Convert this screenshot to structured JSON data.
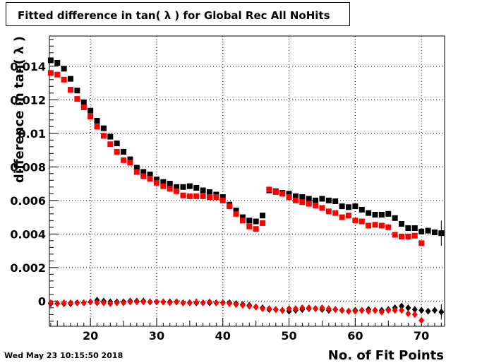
{
  "timestamp": "Wed May 23 10:15:50 2018",
  "chart_data": {
    "type": "scatter",
    "title": "Fitted difference in tan( λ ) for Global Rec All NoHits",
    "xlabel": "No. of Fit Points",
    "ylabel": "difference in tan( λ )",
    "xlim": [
      13.8,
      73.5
    ],
    "ylim": [
      -0.0015,
      0.0158
    ],
    "grid": true,
    "x_ticks": [
      20,
      30,
      40,
      50,
      60,
      70
    ],
    "x_tick_labels": [
      "20",
      "30",
      "40",
      "50",
      "60",
      "70"
    ],
    "y_ticks": [
      0,
      0.002,
      0.004,
      0.006,
      0.008,
      0.01,
      0.012,
      0.014
    ],
    "y_tick_labels": [
      "0",
      "0.002",
      "0.004",
      "0.006",
      "0.008",
      "0.01",
      "0.012",
      "0.014"
    ],
    "series": [
      {
        "color": "#000000",
        "marker": "square",
        "points": [
          [
            14,
            0.01435
          ],
          [
            15,
            0.0142
          ],
          [
            16,
            0.01385
          ],
          [
            17,
            0.01325
          ],
          [
            18,
            0.01255
          ],
          [
            19,
            0.01185
          ],
          [
            20,
            0.01135
          ],
          [
            21,
            0.01075
          ],
          [
            22,
            0.0103
          ],
          [
            23,
            0.0098
          ],
          [
            24,
            0.0094
          ],
          [
            25,
            0.0089
          ],
          [
            26,
            0.00845
          ],
          [
            27,
            0.00795
          ],
          [
            28,
            0.0077
          ],
          [
            29,
            0.00755
          ],
          [
            30,
            0.00725
          ],
          [
            31,
            0.0071
          ],
          [
            32,
            0.007
          ],
          [
            33,
            0.0068
          ],
          [
            34,
            0.0068
          ],
          [
            35,
            0.00685
          ],
          [
            36,
            0.00675
          ],
          [
            37,
            0.0066
          ],
          [
            38,
            0.0065
          ],
          [
            39,
            0.00635
          ],
          [
            40,
            0.0062
          ],
          [
            41,
            0.00575
          ],
          [
            42,
            0.0054
          ],
          [
            43,
            0.005
          ],
          [
            44,
            0.0048
          ],
          [
            45,
            0.00475
          ],
          [
            46,
            0.0051
          ],
          [
            47,
            0.0066
          ],
          [
            48,
            0.00655
          ],
          [
            49,
            0.00645
          ],
          [
            50,
            0.0064
          ],
          [
            51,
            0.00625
          ],
          [
            52,
            0.0062
          ],
          [
            53,
            0.0061
          ],
          [
            54,
            0.006
          ],
          [
            55,
            0.0061
          ],
          [
            56,
            0.006
          ],
          [
            57,
            0.00595
          ],
          [
            58,
            0.00565
          ],
          [
            59,
            0.0056
          ],
          [
            60,
            0.00565
          ],
          [
            61,
            0.00545
          ],
          [
            62,
            0.00525
          ],
          [
            63,
            0.00515
          ],
          [
            64,
            0.00515
          ],
          [
            65,
            0.0052
          ],
          [
            66,
            0.00495
          ],
          [
            67,
            0.0046
          ],
          [
            68,
            0.00435
          ],
          [
            69,
            0.00435
          ],
          [
            70,
            0.00415
          ],
          [
            71,
            0.0042
          ],
          [
            72,
            0.0041
          ],
          [
            73,
            0.00405
          ]
        ]
      },
      {
        "color": "#ff0000",
        "marker": "square",
        "points": [
          [
            14,
            0.0136
          ],
          [
            15,
            0.0135
          ],
          [
            16,
            0.0132
          ],
          [
            17,
            0.0126
          ],
          [
            18,
            0.01205
          ],
          [
            19,
            0.01155
          ],
          [
            20,
            0.011
          ],
          [
            21,
            0.0104
          ],
          [
            22,
            0.00985
          ],
          [
            23,
            0.00935
          ],
          [
            24,
            0.0089
          ],
          [
            25,
            0.0084
          ],
          [
            26,
            0.00825
          ],
          [
            27,
            0.0077
          ],
          [
            28,
            0.00745
          ],
          [
            29,
            0.0073
          ],
          [
            30,
            0.00705
          ],
          [
            31,
            0.00685
          ],
          [
            32,
            0.0067
          ],
          [
            33,
            0.00655
          ],
          [
            34,
            0.0063
          ],
          [
            35,
            0.00625
          ],
          [
            36,
            0.00625
          ],
          [
            37,
            0.00625
          ],
          [
            38,
            0.0062
          ],
          [
            39,
            0.0062
          ],
          [
            40,
            0.006
          ],
          [
            41,
            0.00565
          ],
          [
            42,
            0.0052
          ],
          [
            43,
            0.0048
          ],
          [
            44,
            0.00445
          ],
          [
            45,
            0.0043
          ],
          [
            46,
            0.00465
          ],
          [
            47,
            0.00665
          ],
          [
            48,
            0.0065
          ],
          [
            49,
            0.0064
          ],
          [
            50,
            0.0062
          ],
          [
            51,
            0.006
          ],
          [
            52,
            0.0059
          ],
          [
            53,
            0.0058
          ],
          [
            54,
            0.0057
          ],
          [
            55,
            0.00555
          ],
          [
            56,
            0.00535
          ],
          [
            57,
            0.00525
          ],
          [
            58,
            0.005
          ],
          [
            59,
            0.0051
          ],
          [
            60,
            0.0048
          ],
          [
            61,
            0.00475
          ],
          [
            62,
            0.0045
          ],
          [
            63,
            0.00455
          ],
          [
            64,
            0.0045
          ],
          [
            65,
            0.0044
          ],
          [
            66,
            0.00395
          ],
          [
            67,
            0.00385
          ],
          [
            68,
            0.00385
          ],
          [
            69,
            0.0039
          ],
          [
            70,
            0.00345
          ]
        ]
      },
      {
        "color": "#000000",
        "marker": "diamond",
        "points": [
          [
            14,
            -0.00015
          ],
          [
            15,
            -0.00015
          ],
          [
            16,
            -0.00015
          ],
          [
            17,
            -0.00015
          ],
          [
            18,
            -0.0001
          ],
          [
            19,
            -0.0001
          ],
          [
            20,
            -5e-05
          ],
          [
            21,
            5e-05
          ],
          [
            22,
            0.0
          ],
          [
            23,
            -5e-05
          ],
          [
            24,
            -5e-05
          ],
          [
            25,
            -5e-05
          ],
          [
            26,
            0.0
          ],
          [
            27,
            0.0
          ],
          [
            28,
            0.0
          ],
          [
            29,
            -5e-05
          ],
          [
            30,
            -5e-05
          ],
          [
            31,
            -5e-05
          ],
          [
            32,
            -5e-05
          ],
          [
            33,
            -5e-05
          ],
          [
            34,
            -0.0001
          ],
          [
            35,
            -0.0001
          ],
          [
            36,
            -0.0001
          ],
          [
            37,
            -0.0001
          ],
          [
            38,
            -0.0001
          ],
          [
            39,
            -0.0001
          ],
          [
            40,
            -0.0001
          ],
          [
            41,
            -0.0001
          ],
          [
            42,
            -0.00015
          ],
          [
            43,
            -0.0002
          ],
          [
            44,
            -0.00025
          ],
          [
            45,
            -0.00035
          ],
          [
            46,
            -0.0004
          ],
          [
            47,
            -0.0005
          ],
          [
            48,
            -0.0005
          ],
          [
            49,
            -0.00055
          ],
          [
            50,
            -0.0006
          ],
          [
            51,
            -0.00055
          ],
          [
            52,
            -0.0005
          ],
          [
            53,
            -0.00045
          ],
          [
            54,
            -0.00045
          ],
          [
            55,
            -0.0005
          ],
          [
            56,
            -0.00055
          ],
          [
            57,
            -0.0005
          ],
          [
            58,
            -0.00055
          ],
          [
            59,
            -0.0006
          ],
          [
            60,
            -0.00055
          ],
          [
            61,
            -0.00055
          ],
          [
            62,
            -0.0005
          ],
          [
            63,
            -0.00055
          ],
          [
            64,
            -0.00055
          ],
          [
            65,
            -0.0005
          ],
          [
            66,
            -0.0004
          ],
          [
            67,
            -0.0003
          ],
          [
            68,
            -0.0004
          ],
          [
            69,
            -0.0005
          ],
          [
            70,
            -0.00055
          ],
          [
            71,
            -0.0006
          ],
          [
            72,
            -0.00055
          ],
          [
            73,
            -0.00065
          ]
        ]
      },
      {
        "color": "#ff0000",
        "marker": "diamond",
        "points": [
          [
            14,
            -0.0001
          ],
          [
            15,
            -0.00015
          ],
          [
            16,
            -0.0001
          ],
          [
            17,
            -0.0001
          ],
          [
            18,
            -0.0001
          ],
          [
            19,
            -0.0001
          ],
          [
            20,
            -5e-05
          ],
          [
            21,
            -0.0001
          ],
          [
            22,
            -0.0001
          ],
          [
            23,
            -0.00015
          ],
          [
            24,
            -0.0001
          ],
          [
            25,
            -0.0001
          ],
          [
            26,
            -5e-05
          ],
          [
            27,
            -5e-05
          ],
          [
            28,
            -5e-05
          ],
          [
            29,
            -5e-05
          ],
          [
            30,
            -5e-05
          ],
          [
            31,
            -5e-05
          ],
          [
            32,
            -0.0001
          ],
          [
            33,
            -5e-05
          ],
          [
            34,
            -0.0001
          ],
          [
            35,
            -0.0001
          ],
          [
            36,
            -5e-05
          ],
          [
            37,
            -0.0001
          ],
          [
            38,
            -5e-05
          ],
          [
            39,
            -0.0001
          ],
          [
            40,
            -0.0001
          ],
          [
            41,
            -0.00015
          ],
          [
            42,
            -0.0002
          ],
          [
            43,
            -0.00025
          ],
          [
            44,
            -0.0003
          ],
          [
            45,
            -0.00035
          ],
          [
            46,
            -0.00045
          ],
          [
            47,
            -0.00045
          ],
          [
            48,
            -0.0005
          ],
          [
            49,
            -0.00055
          ],
          [
            50,
            -0.00045
          ],
          [
            51,
            -0.00045
          ],
          [
            52,
            -0.0004
          ],
          [
            53,
            -0.0004
          ],
          [
            54,
            -0.00045
          ],
          [
            55,
            -0.0004
          ],
          [
            56,
            -0.00045
          ],
          [
            57,
            -0.0005
          ],
          [
            58,
            -0.00055
          ],
          [
            59,
            -0.0006
          ],
          [
            60,
            -0.0006
          ],
          [
            61,
            -0.00055
          ],
          [
            62,
            -0.0006
          ],
          [
            63,
            -0.00055
          ],
          [
            64,
            -0.00065
          ],
          [
            65,
            -0.00055
          ],
          [
            66,
            -0.00055
          ],
          [
            67,
            -0.00055
          ],
          [
            68,
            -0.00075
          ],
          [
            69,
            -0.0008
          ],
          [
            70,
            -0.00115
          ]
        ]
      }
    ],
    "error_bars": [
      {
        "series": 0,
        "x": 73,
        "low": 0.0033,
        "high": 0.0048
      },
      {
        "series": 2,
        "x": 73,
        "low": -0.0011,
        "high": -0.0002
      }
    ]
  }
}
